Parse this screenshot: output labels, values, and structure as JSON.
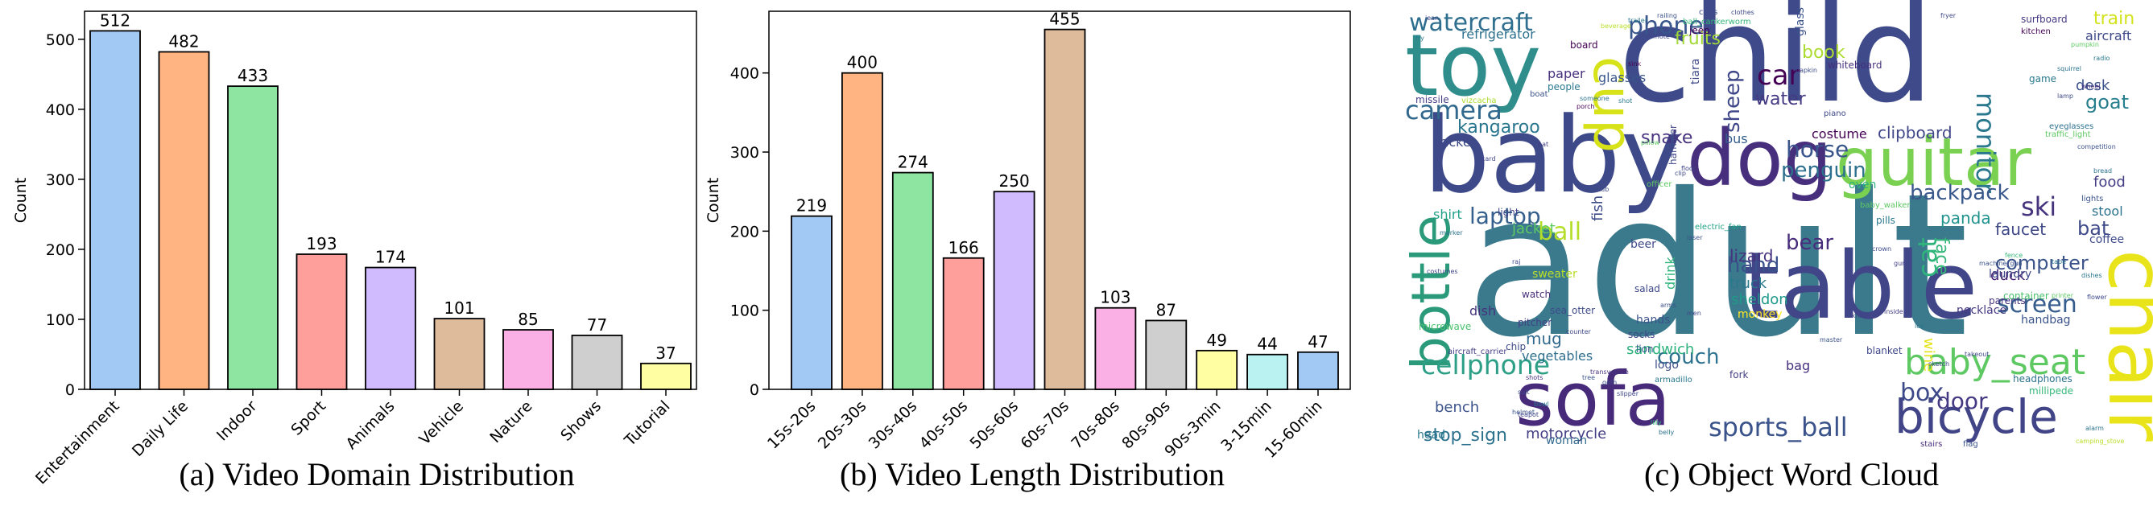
{
  "chart_data": [
    {
      "type": "bar",
      "caption": "(a) Video Domain Distribution",
      "ylabel": "Count",
      "ylim": [
        0,
        540
      ],
      "yticks": [
        0,
        100,
        200,
        300,
        400,
        500
      ],
      "categories": [
        "Entertainment",
        "Daily Life",
        "Indoor",
        "Sport",
        "Animals",
        "Vehicle",
        "Nature",
        "Shows",
        "Tutorial"
      ],
      "values": [
        512,
        482,
        433,
        193,
        174,
        101,
        85,
        77,
        37
      ],
      "colors": [
        "#a1c9f4",
        "#ffb482",
        "#8de5a1",
        "#ff9f9b",
        "#d0bbff",
        "#debb9b",
        "#fab0e4",
        "#cfcfcf",
        "#fffea3"
      ]
    },
    {
      "type": "bar",
      "caption": "(b) Video Length Distribution",
      "ylabel": "Count",
      "ylim": [
        0,
        478
      ],
      "yticks": [
        0,
        100,
        200,
        300,
        400
      ],
      "categories": [
        "15s-20s",
        "20s-30s",
        "30s-40s",
        "40s-50s",
        "50s-60s",
        "60s-70s",
        "70s-80s",
        "80s-90s",
        "90s-3min",
        "3-15min",
        "15-60min"
      ],
      "values": [
        219,
        400,
        274,
        166,
        250,
        455,
        103,
        87,
        49,
        44,
        47
      ],
      "colors": [
        "#a1c9f4",
        "#ffb482",
        "#8de5a1",
        "#ff9f9b",
        "#d0bbff",
        "#debb9b",
        "#fab0e4",
        "#cfcfcf",
        "#fffea3",
        "#b9f2f0",
        "#a1c9f4"
      ]
    }
  ],
  "wordcloud": {
    "caption": "(c) Object Word Cloud",
    "words": [
      {
        "text": "adult",
        "color": "#3b7a8c"
      },
      {
        "text": "child",
        "color": "#3e4a89"
      },
      {
        "text": "baby",
        "color": "#3e4989"
      },
      {
        "text": "table",
        "color": "#404688"
      },
      {
        "text": "sofa",
        "color": "#472a7a"
      },
      {
        "text": "toy",
        "color": "#2f8e8c"
      },
      {
        "text": "dog",
        "color": "#472f7d"
      },
      {
        "text": "guitar",
        "color": "#7ad151"
      },
      {
        "text": "chair",
        "color": "#e8e419"
      },
      {
        "text": "bicycle",
        "color": "#414487"
      },
      {
        "text": "bottle",
        "color": "#2a9a7a"
      },
      {
        "text": "cup",
        "color": "#d8e219"
      },
      {
        "text": "baby_seat",
        "color": "#5ec962"
      },
      {
        "text": "cellphone",
        "color": "#2c9f86"
      },
      {
        "text": "sports_ball",
        "color": "#3a538b"
      },
      {
        "text": "watercraft",
        "color": "#2e6e8e"
      },
      {
        "text": "phone",
        "color": "#39568c"
      },
      {
        "text": "camera",
        "color": "#31688e"
      },
      {
        "text": "car",
        "color": "#440154"
      },
      {
        "text": "monitor",
        "color": "#2a788e"
      },
      {
        "text": "horse",
        "color": "#3a548c"
      },
      {
        "text": "penguin",
        "color": "#2d708e"
      },
      {
        "text": "backpack",
        "color": "#38588c"
      },
      {
        "text": "ski",
        "color": "#46337e"
      },
      {
        "text": "laptop",
        "color": "#355f8d"
      },
      {
        "text": "ball",
        "color": "#b5de2b"
      },
      {
        "text": "bear",
        "color": "#472d7b"
      },
      {
        "text": "hand",
        "color": "#3b518b"
      },
      {
        "text": "cat",
        "color": "#2fb47c"
      },
      {
        "text": "screen",
        "color": "#365d8d"
      },
      {
        "text": "box",
        "color": "#3e4989"
      },
      {
        "text": "door",
        "color": "#443a83"
      },
      {
        "text": "couch",
        "color": "#2c728e"
      },
      {
        "text": "computer",
        "color": "#3a538b"
      },
      {
        "text": "kangaroo",
        "color": "#2a768e"
      },
      {
        "text": "sheep",
        "color": "#3f4788"
      },
      {
        "text": "book",
        "color": "#addc30"
      },
      {
        "text": "water",
        "color": "#443983"
      },
      {
        "text": "goat",
        "color": "#277f8e"
      },
      {
        "text": "train",
        "color": "#d2e21b"
      },
      {
        "text": "bat",
        "color": "#3e4a89"
      },
      {
        "text": "face",
        "color": "#35b779"
      },
      {
        "text": "fruits",
        "color": "#a2da37"
      },
      {
        "text": "snake",
        "color": "#46327e"
      },
      {
        "text": "stop_sign",
        "color": "#2c728e"
      },
      {
        "text": "motorcycle",
        "color": "#433e85"
      },
      {
        "text": "lizard",
        "color": "#46327e"
      },
      {
        "text": "sandwich",
        "color": "#2db27d"
      },
      {
        "text": "mug",
        "color": "#31688e"
      },
      {
        "text": "vegetables",
        "color": "#2e6f8e"
      },
      {
        "text": "bench",
        "color": "#3b528b"
      },
      {
        "text": "panda",
        "color": "#20928c"
      },
      {
        "text": "clipboard",
        "color": "#3f4788"
      },
      {
        "text": "duck",
        "color": "#482475"
      },
      {
        "text": "truck",
        "color": "#2a788e"
      },
      {
        "text": "sheldon",
        "color": "#1f9a8a"
      },
      {
        "text": "costume",
        "color": "#440154"
      },
      {
        "text": "faucet",
        "color": "#3f4889"
      },
      {
        "text": "food",
        "color": "#433e85"
      },
      {
        "text": "desk",
        "color": "#3b528b"
      },
      {
        "text": "paper",
        "color": "#46307e"
      },
      {
        "text": "bus",
        "color": "#355f8d"
      },
      {
        "text": "glasses",
        "color": "#39568c"
      },
      {
        "text": "racket",
        "color": "#3e4989"
      },
      {
        "text": "refrigerator",
        "color": "#2c718e"
      },
      {
        "text": "shirt",
        "color": "#1fa187"
      },
      {
        "text": "jacket",
        "color": "#5ec962"
      },
      {
        "text": "fish",
        "color": "#3e4c8a"
      },
      {
        "text": "wine",
        "color": "#e5e419"
      },
      {
        "text": "laundry",
        "color": "#3f4788"
      },
      {
        "text": "handbag",
        "color": "#3a538b"
      },
      {
        "text": "necklace",
        "color": "#453781"
      },
      {
        "text": "dish",
        "color": "#46337e"
      },
      {
        "text": "head",
        "color": "#2a788e"
      },
      {
        "text": "woman",
        "color": "#31688e"
      },
      {
        "text": "bag",
        "color": "#46307e"
      },
      {
        "text": "logo",
        "color": "#3c4f8a"
      },
      {
        "text": "hands",
        "color": "#3b528b"
      },
      {
        "text": "stool",
        "color": "#2c728e"
      },
      {
        "text": "coffee",
        "color": "#3e4a89"
      },
      {
        "text": "microwave",
        "color": "#4ac16d"
      },
      {
        "text": "salad",
        "color": "#3f4889"
      },
      {
        "text": "chip",
        "color": "#3e4c8a"
      },
      {
        "text": "sweater",
        "color": "#b8de29"
      },
      {
        "text": "drink",
        "color": "#2fb47c"
      },
      {
        "text": "monkey",
        "color": "#fde725"
      },
      {
        "text": "oven",
        "color": "#2db27d"
      },
      {
        "text": "people",
        "color": "#2a788e"
      },
      {
        "text": "missile",
        "color": "#433e85"
      },
      {
        "text": "board",
        "color": "#440154"
      },
      {
        "text": "light",
        "color": "#3f4788"
      },
      {
        "text": "watch",
        "color": "#472c7a"
      },
      {
        "text": "sea_otter",
        "color": "#3e4c8a"
      },
      {
        "text": "pitcher",
        "color": "#433e85"
      },
      {
        "text": "socks",
        "color": "#3f4788"
      },
      {
        "text": "lion",
        "color": "#3b528b"
      },
      {
        "text": "fork",
        "color": "#433e85"
      },
      {
        "text": "armadillo",
        "color": "#2a788e"
      },
      {
        "text": "tiara",
        "color": "#3e4989"
      },
      {
        "text": "pills",
        "color": "#2a788e"
      },
      {
        "text": "parents",
        "color": "#46337e"
      },
      {
        "text": "container",
        "color": "#4ac16d"
      },
      {
        "text": "blanket",
        "color": "#3f4889"
      },
      {
        "text": "millipede",
        "color": "#35b779"
      },
      {
        "text": "headphones",
        "color": "#2c728e"
      },
      {
        "text": "flag",
        "color": "#3b528b"
      },
      {
        "text": "stairs",
        "color": "#472c7a"
      },
      {
        "text": "aircraft",
        "color": "#3e4989"
      },
      {
        "text": "surfboard",
        "color": "#453781"
      },
      {
        "text": "kitchen",
        "color": "#440154"
      },
      {
        "text": "whiteboard",
        "color": "#46307e"
      },
      {
        "text": "piano",
        "color": "#3e4989"
      },
      {
        "text": "hamster",
        "color": "#3f4788"
      },
      {
        "text": "glass",
        "color": "#3b528b"
      },
      {
        "text": "jeep",
        "color": "#440154"
      },
      {
        "text": "cups",
        "color": "#3e4c8a"
      },
      {
        "text": "clothes",
        "color": "#3e4989"
      },
      {
        "text": "game",
        "color": "#2a788e"
      },
      {
        "text": "eyeglasses",
        "color": "#2c728e"
      },
      {
        "text": "lights",
        "color": "#3b528b"
      },
      {
        "text": "traffic_light",
        "color": "#5ec962"
      },
      {
        "text": "electric_fan",
        "color": "#20a386"
      },
      {
        "text": "baby_walker",
        "color": "#5ec962"
      },
      {
        "text": "aircraft_carrier",
        "color": "#433e85"
      },
      {
        "text": "ball_cankerworm",
        "color": "#35b779"
      },
      {
        "text": "vizcacha",
        "color": "#addc30"
      },
      {
        "text": "squirrel",
        "color": "#2c728e"
      },
      {
        "text": "flower",
        "color": "#3e4989"
      },
      {
        "text": "printer",
        "color": "#5ec962"
      },
      {
        "text": "machine_gun",
        "color": "#3b528b"
      },
      {
        "text": "dishes",
        "color": "#2a788e"
      },
      {
        "text": "teapot",
        "color": "#3f4788"
      },
      {
        "text": "alarm",
        "color": "#2c728e"
      },
      {
        "text": "camping_stove",
        "color": "#b8de29"
      },
      {
        "text": "transvestite",
        "color": "#46337e"
      },
      {
        "text": "counter",
        "color": "#3e4989"
      },
      {
        "text": "radio",
        "color": "#2a788e"
      },
      {
        "text": "officer",
        "color": "#5ec962"
      },
      {
        "text": "competition",
        "color": "#3b528b"
      },
      {
        "text": "suit",
        "color": "#3e4c8a"
      },
      {
        "text": "marker",
        "color": "#2c728e"
      },
      {
        "text": "costumes",
        "color": "#3f4788"
      },
      {
        "text": "sink",
        "color": "#440154"
      },
      {
        "text": "jean",
        "color": "#3e4989"
      },
      {
        "text": "fry",
        "color": "#2a788e"
      },
      {
        "text": "hat",
        "color": "#433e85"
      },
      {
        "text": "boat",
        "color": "#3b528b"
      },
      {
        "text": "card",
        "color": "#3f4788"
      },
      {
        "text": "lamp",
        "color": "#3e4989"
      },
      {
        "text": "wheel",
        "color": "#46337e"
      },
      {
        "text": "bread",
        "color": "#2c728e"
      },
      {
        "text": "laser",
        "color": "#3b528b"
      },
      {
        "text": "clip",
        "color": "#3e4989"
      },
      {
        "text": "floor",
        "color": "#3f4788"
      },
      {
        "text": "tub",
        "color": "#3e4c8a"
      },
      {
        "text": "porch",
        "color": "#440154"
      },
      {
        "text": "shot",
        "color": "#2a788e"
      },
      {
        "text": "pillow",
        "color": "#5ec962"
      },
      {
        "text": "tree",
        "color": "#3b528b"
      },
      {
        "text": "belly",
        "color": "#2c728e"
      },
      {
        "text": "lilly",
        "color": "#35b779"
      },
      {
        "text": "takeout",
        "color": "#3f4788"
      },
      {
        "text": "sketch",
        "color": "#3e4989"
      },
      {
        "text": "ice",
        "color": "#2a788e"
      },
      {
        "text": "master",
        "color": "#3b528b"
      },
      {
        "text": "inside",
        "color": "#433e85"
      },
      {
        "text": "shots",
        "color": "#46337e"
      },
      {
        "text": "goth",
        "color": "#3e4c8a"
      },
      {
        "text": "raj",
        "color": "#3f4788"
      },
      {
        "text": "pumpkin",
        "color": "#5ec962"
      },
      {
        "text": "remote",
        "color": "#3e4989"
      },
      {
        "text": "trailer",
        "color": "#2a788e"
      },
      {
        "text": "railing",
        "color": "#3b528b"
      },
      {
        "text": "beverage",
        "color": "#b8de29"
      },
      {
        "text": "someone",
        "color": "#2c728e"
      },
      {
        "text": "fryer",
        "color": "#3f4788"
      },
      {
        "text": "beer",
        "color": "#3e4989"
      },
      {
        "text": "napkin",
        "color": "#3e4c8a"
      },
      {
        "text": "helmet",
        "color": "#3b528b"
      },
      {
        "text": "bowl",
        "color": "#2a788e"
      },
      {
        "text": "knife",
        "color": "#3f4788"
      },
      {
        "text": "gun",
        "color": "#433e85"
      },
      {
        "text": "tape",
        "color": "#2c728e"
      },
      {
        "text": "arms",
        "color": "#3b528b"
      },
      {
        "text": "men",
        "color": "#3e4989"
      },
      {
        "text": "fence",
        "color": "#35b779"
      },
      {
        "text": "slipper",
        "color": "#3f4788"
      },
      {
        "text": "crown",
        "color": "#3e4c8a"
      }
    ]
  }
}
